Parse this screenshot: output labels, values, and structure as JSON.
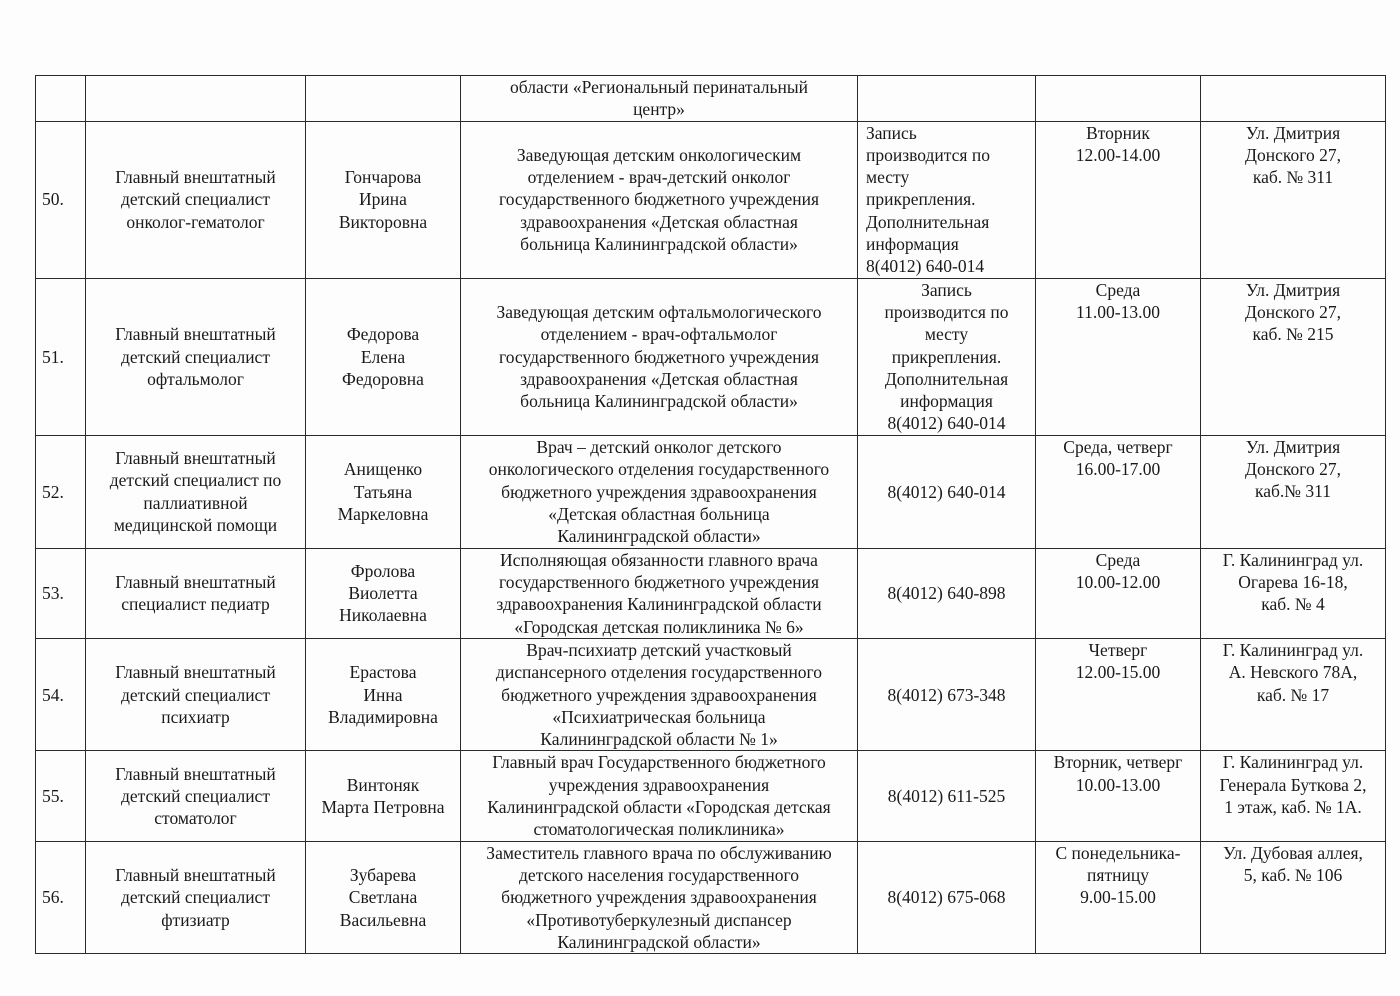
{
  "continuation_row": {
    "job": "области «Региональный перинатальный\nцентр»"
  },
  "rows": [
    {
      "num": "50.",
      "position": "Главный внештатный\nдетский специалист\nонколог-гематолог",
      "name": "Гончарова\nИрина\nВикторовна",
      "job": "Заведующая детским онкологическим\nотделением - врач-детский онколог\nгосударственного бюджетного учреждения\nздравоохранения «Детская областная\nбольница Калининградской области»",
      "contact": "Запись\nпроизводится по\nместу\nприкрепления.\nДополнительная\nинформация\n8(4012) 640-014",
      "schedule": "Вторник\n12.00-14.00",
      "address": "Ул. Дмитрия\nДонского 27,\nкаб. № 311"
    },
    {
      "num": "51.",
      "position": "Главный внештатный\nдетский специалист\nофтальмолог",
      "name": "Федорова\nЕлена\nФедоровна",
      "job": "Заведующая детским офтальмологического\nотделением - врач-офтальмолог\nгосударственного бюджетного учреждения\nздравоохранения «Детская областная\nбольница Калининградской области»",
      "contact": "Запись\nпроизводится по\nместу\nприкрепления.\nДополнительная\nинформация\n8(4012) 640-014",
      "schedule": "Среда\n11.00-13.00",
      "address": "Ул. Дмитрия\nДонского 27,\nкаб. № 215"
    },
    {
      "num": "52.",
      "position": "Главный внештатный\nдетский специалист по\nпаллиативной\nмедицинской помощи",
      "name": "Анищенко\nТатьяна\nМаркеловна",
      "job": "Врач – детский онколог детского\nонкологического отделения государственного\nбюджетного учреждения здравоохранения\n«Детская областная больница\nКалининградской области»",
      "contact": "8(4012) 640-014",
      "schedule": "Среда, четверг\n16.00-17.00",
      "address": "Ул. Дмитрия\nДонского 27,\nкаб.№ 311"
    },
    {
      "num": "53.",
      "position": "Главный внештатный\nспециалист педиатр",
      "name": "Фролова\nВиолетта\nНиколаевна",
      "job": "Исполняющая обязанности главного врача\nгосударственного бюджетного учреждения\nздравоохранения Калининградской области\n«Городская детская поликлиника № 6»",
      "contact": "8(4012) 640-898",
      "schedule": "Среда\n10.00-12.00",
      "address": "Г. Калининград ул.\nОгарева 16-18,\nкаб. № 4"
    },
    {
      "num": "54.",
      "position": "Главный внештатный\nдетский специалист\nпсихиатр",
      "name": "Ерастова\nИнна\nВладимировна",
      "job": "Врач-психиатр детский участковый\nдиспансерного отделения государственного\nбюджетного учреждения здравоохранения\n«Психиатрическая больница\nКалининградской области № 1»",
      "contact": "8(4012) 673-348",
      "schedule": "Четверг\n12.00-15.00",
      "address": "Г. Калининград ул.\nА. Невского 78А,\nкаб. № 17"
    },
    {
      "num": "55.",
      "position": "Главный внештатный\nдетский специалист\nстоматолог",
      "name": "Винтоняк\nМарта Петровна",
      "job": "Главный врач Государственного бюджетного\nучреждения здравоохранения\nКалининградской области «Городская детская\nстоматологическая поликлиника»",
      "contact": "8(4012) 611-525",
      "schedule": "Вторник, четверг\n10.00-13.00",
      "address": "Г. Калининград ул.\nГенерала Буткова 2,\n1 этаж, каб. № 1А."
    },
    {
      "num": "56.",
      "position": "Главный внештатный\nдетский специалист\nфтизиатр",
      "name": "Зубарева\nСветлана\nВасильевна",
      "job": "Заместитель главного врача по обслуживанию\nдетского населения государственного\nбюджетного учреждения здравоохранения\n«Противотуберкулезный диспансер\nКалининградской области»",
      "contact": "8(4012) 675-068",
      "schedule": "С понедельника-\nпятницу\n9.00-15.00",
      "address": "Ул. Дубовая аллея,\n5, каб. № 106"
    }
  ]
}
